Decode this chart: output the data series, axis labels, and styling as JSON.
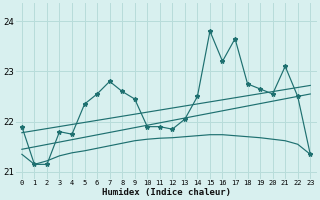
{
  "xlabel": "Humidex (Indice chaleur)",
  "bg_color": "#d8f0ef",
  "grid_color": "#b8dcda",
  "line_color": "#1e7070",
  "xlim": [
    -0.5,
    23.5
  ],
  "ylim": [
    20.85,
    24.35
  ],
  "yticks": [
    21,
    22,
    23,
    24
  ],
  "xticks": [
    0,
    1,
    2,
    3,
    4,
    5,
    6,
    7,
    8,
    9,
    10,
    11,
    12,
    13,
    14,
    15,
    16,
    17,
    18,
    19,
    20,
    21,
    22,
    23
  ],
  "series1_x": [
    0,
    1,
    2,
    3,
    4,
    5,
    6,
    7,
    8,
    9,
    10,
    11,
    12,
    13,
    14,
    15,
    16,
    17,
    18,
    19,
    20,
    21,
    22,
    23
  ],
  "series1_y": [
    21.9,
    21.15,
    21.15,
    21.8,
    21.75,
    22.35,
    22.55,
    22.8,
    22.6,
    22.45,
    21.9,
    21.9,
    21.85,
    22.05,
    22.5,
    23.8,
    23.2,
    23.65,
    22.75,
    22.65,
    22.55,
    23.1,
    22.5,
    21.35
  ],
  "series2_x": [
    0,
    23
  ],
  "series2_y": [
    21.78,
    22.72
  ],
  "series3_x": [
    0,
    23
  ],
  "series3_y": [
    21.45,
    22.55
  ],
  "series4_x": [
    0,
    1,
    2,
    3,
    4,
    5,
    6,
    7,
    8,
    9,
    10,
    11,
    12,
    13,
    14,
    15,
    16,
    17,
    18,
    19,
    20,
    21,
    22,
    23
  ],
  "series4_y": [
    21.35,
    21.15,
    21.22,
    21.32,
    21.38,
    21.42,
    21.47,
    21.52,
    21.57,
    21.62,
    21.65,
    21.67,
    21.68,
    21.7,
    21.72,
    21.74,
    21.74,
    21.72,
    21.7,
    21.68,
    21.65,
    21.62,
    21.55,
    21.35
  ]
}
